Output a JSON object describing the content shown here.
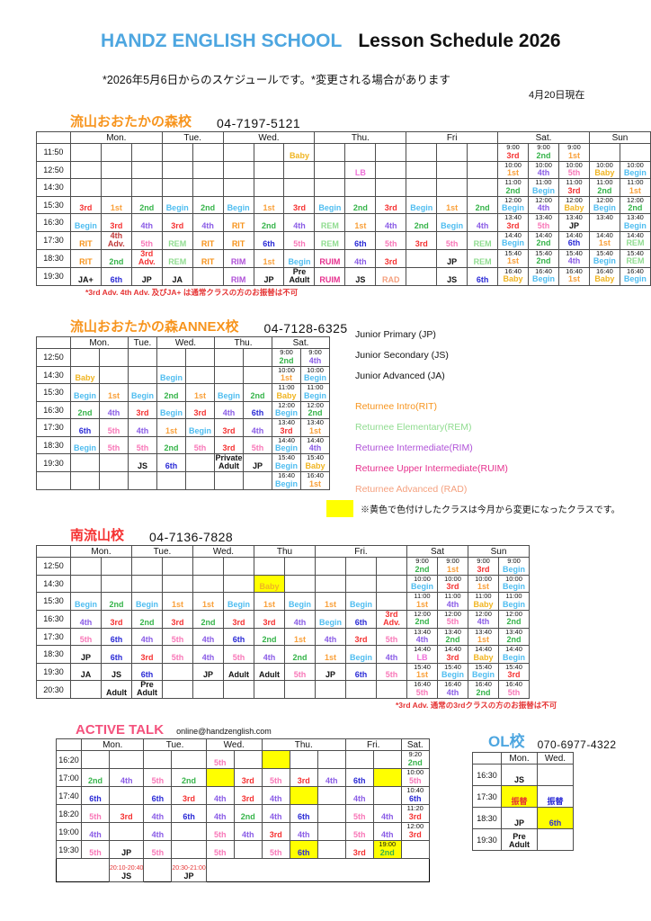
{
  "header": {
    "school_name": "HANDZ ENGLISH SCHOOL",
    "title": "Lesson Schedule 2026",
    "subtitle": "*2026年5月6日からのスケジュールです。*変更される場合があります",
    "date_note": "4月20日現在",
    "brand_color": "#4da6e0"
  },
  "yellow_note": {
    "text": "※黄色で色付けしたクラスは今月から変更になったクラスです。",
    "swatch_color": "#ffff00"
  },
  "palette": {
    "Baby": "#f0b522",
    "Begin": "#4fbdf0",
    "LB": "#ef6fd8",
    "1st": "#f9a03a",
    "2nd": "#36b44a",
    "3rd": "#f53232",
    "4th": "#8a5ce6",
    "5th": "#f878b8",
    "6th": "#2a2ad6",
    "RIT": "#f7941d",
    "REM": "#90dc90",
    "RIM": "#b052d8",
    "RUIM": "#e6308e",
    "RAD": "#f5a07e",
    "3rd Adv.": "#f53232",
    "4th Adv.": "#c03a3a",
    "JP": "#111111",
    "JS": "#111111",
    "JA": "#111111",
    "JA+": "#111111",
    "Adult": "#111111",
    "Pre Adult": "#111111",
    "Private Adult": "#111111"
  },
  "legend": {
    "items": [
      {
        "label": "Junior Primary (JP)",
        "color": "#111111"
      },
      {
        "label": "Junior Secondary (JS)",
        "color": "#111111"
      },
      {
        "label": "Junior Advanced (JA)",
        "color": "#111111"
      },
      {
        "label": "Returnee Intro(RIT)",
        "color": "#f7941d",
        "gap": true
      },
      {
        "label": "Returnee Elementary(REM)",
        "color": "#90dc90"
      },
      {
        "label": "Returnee Intermediate(RIM)",
        "color": "#b052d8"
      },
      {
        "label": "Returnee Upper Intermediate(RUIM)",
        "color": "#e6308e"
      },
      {
        "label": "Returnee Advanced (RAD)",
        "color": "#f5a07e"
      }
    ]
  },
  "tables": [
    {
      "id": "otakanomori",
      "title": "流山おおたかの森校",
      "title_color": "#f7941d",
      "phone": "04-7197-5121",
      "note": "*3rd Adv. 4th Adv. 及びJA+ は通常クラスの方のお振替は不可",
      "days": [
        {
          "label": "Mon.",
          "cols": 3
        },
        {
          "label": "Tue.",
          "cols": 2
        },
        {
          "label": "Wed.",
          "cols": 3
        },
        {
          "label": "Thu.",
          "cols": 3
        },
        {
          "label": "Fri",
          "cols": 3
        },
        {
          "label": "Sat.",
          "cols": 3
        },
        {
          "label": "Sun",
          "cols": 2
        }
      ],
      "rows": [
        {
          "time": "11:50",
          "cells": [
            "",
            "",
            "",
            "",
            "",
            "",
            "",
            "Baby",
            "",
            "",
            "",
            "",
            "",
            "",
            "T|9:00|3rd",
            "T|9:00|2nd",
            "T|9:00|1st",
            "",
            ""
          ]
        },
        {
          "time": "12:50",
          "cells": [
            "",
            "",
            "",
            "",
            "",
            "",
            "",
            "",
            "",
            "LB",
            "",
            "",
            "",
            "",
            "T|10:00|1st",
            "T|10:00|4th",
            "T|10:00|5th",
            "T|10:00|Baby",
            "T|10:00|Begin"
          ]
        },
        {
          "time": "14:30",
          "cells": [
            "",
            "",
            "",
            "",
            "",
            "",
            "",
            "",
            "",
            "",
            "",
            "",
            "",
            "",
            "T|11:00|2nd",
            "T|11:00|Begin",
            "T|11:00|3rd",
            "T|11:00|2nd",
            "T|11:00|1st"
          ]
        },
        {
          "time": "15:30",
          "cells": [
            "3rd",
            "1st",
            "2nd",
            "Begin",
            "2nd",
            "Begin",
            "1st",
            "3rd",
            "Begin",
            "2nd",
            "3rd",
            "Begin",
            "1st",
            "2nd",
            "T|12:00|Begin",
            "T|12:00|4th",
            "T|12:00|Baby",
            "T|12:00|Begin",
            "T|12:00|2nd"
          ]
        },
        {
          "time": "16:30",
          "cells": [
            "Begin",
            "3rd",
            "4th",
            "3rd",
            "4th",
            "RIT",
            "2nd",
            "4th",
            "REM",
            "1st",
            "4th",
            "2nd",
            "Begin",
            "4th",
            "T|13:40|3rd",
            "T|13:40|5th",
            "T|13:40|JP",
            "T|13:40|",
            "T|13:40|Begin"
          ]
        },
        {
          "time": "17:30",
          "cells": [
            "RIT",
            "4th Adv.",
            "5th",
            "REM",
            "RIT",
            "RIT",
            "6th",
            "5th",
            "REM",
            "6th",
            "5th",
            "3rd",
            "5th",
            "REM",
            "T|14:40|Begin",
            "T|14:40|2nd",
            "T|14:40|6th",
            "T|14:40|1st",
            "T|14:40|REM"
          ]
        },
        {
          "time": "18:30",
          "cells": [
            "RIT",
            "2nd",
            "3rd Adv.",
            "REM",
            "RIT",
            "RIM",
            "1st",
            "Begin",
            "RUIM",
            "4th",
            "3rd",
            "",
            "JP",
            "REM",
            "T|15:40|1st",
            "T|15:40|2nd",
            "T|15:40|4th",
            "T|15:40|Begin",
            "T|15:40|REM"
          ]
        },
        {
          "time": "19:30",
          "cells": [
            "JA+",
            "6th",
            "JP",
            "JA",
            "",
            "RIM",
            "JP",
            "Pre Adult",
            "RUIM",
            "JS",
            "RAD",
            "",
            "JS",
            "6th",
            "T|16:40|Baby",
            "T|16:40|Begin",
            "T|16:40|1st",
            "T|16:40|Baby",
            "T|16:40|Begin"
          ]
        }
      ]
    },
    {
      "id": "annex",
      "title": "流山おおたかの森ANNEX校",
      "title_color": "#f7941d",
      "phone": "04-7128-6325",
      "note": "",
      "days": [
        {
          "label": "Mon.",
          "cols": 2
        },
        {
          "label": "Tue.",
          "cols": 1
        },
        {
          "label": "Wed.",
          "cols": 2
        },
        {
          "label": "Thu.",
          "cols": 2
        },
        {
          "label": "Sat.",
          "cols": 2
        }
      ],
      "rows": [
        {
          "time": "12:50",
          "cells": [
            "",
            "",
            "",
            "",
            "",
            "",
            "",
            "T|9:00|2nd",
            "T|9:00|4th"
          ]
        },
        {
          "time": "14:30",
          "cells": [
            "Baby",
            "",
            "",
            "Begin",
            "",
            "",
            "",
            "T|10:00|1st",
            "T|10:00|Begin"
          ]
        },
        {
          "time": "15:30",
          "cells": [
            "Begin",
            "1st",
            "Begin",
            "2nd",
            "1st",
            "Begin",
            "2nd",
            "T|11:00|Baby",
            "T|11:00|Begin"
          ]
        },
        {
          "time": "16:30",
          "cells": [
            "2nd",
            "4th",
            "3rd",
            "Begin",
            "3rd",
            "4th",
            "6th",
            "T|12:00|Begin",
            "T|12:00|2nd"
          ]
        },
        {
          "time": "17:30",
          "cells": [
            "6th",
            "5th",
            "4th",
            "1st",
            "Begin",
            "3rd",
            "4th",
            "T|13:40|3rd",
            "T|13:40|1st"
          ]
        },
        {
          "time": "18:30",
          "cells": [
            "Begin",
            "5th",
            "5th",
            "2nd",
            "5th",
            "3rd",
            "5th",
            "T|14:40|Begin",
            "T|14:40|4th"
          ]
        },
        {
          "time": "19:30",
          "cells": [
            "",
            "",
            "JS",
            "6th",
            "",
            "Private Adult",
            "JP",
            "T|15:40|Begin",
            "T|15:40|Baby"
          ]
        },
        {
          "time": "",
          "cells": [
            "",
            "",
            "",
            "",
            "",
            "",
            "",
            "T|16:40|Begin",
            "T|16:40|1st"
          ]
        }
      ]
    },
    {
      "id": "minami",
      "title": "南流山校",
      "title_color": "#f53232",
      "phone": "04-7136-7828",
      "note": "*3rd Adv. 通常の3rdクラスの方のお振替は不可",
      "days": [
        {
          "label": "Mon.",
          "cols": 2
        },
        {
          "label": "Tue.",
          "cols": 2
        },
        {
          "label": "Wed.",
          "cols": 2
        },
        {
          "label": "Thu",
          "cols": 2
        },
        {
          "label": "Fri.",
          "cols": 3
        },
        {
          "label": "Sat",
          "cols": 2
        },
        {
          "label": "Sun",
          "cols": 2
        }
      ],
      "rows": [
        {
          "time": "12:50",
          "cells": [
            "",
            "",
            "",
            "",
            "",
            "",
            "",
            "",
            "",
            "",
            "",
            "T|9:00|2nd",
            "T|9:00|1st",
            "T|9:00|3rd",
            "T|9:00|Begin"
          ]
        },
        {
          "time": "14:30",
          "cells": [
            "",
            "",
            "",
            "",
            "",
            "",
            "Y|Baby",
            "",
            "",
            "",
            "",
            "T|10:00|Begin",
            "T|10:00|3rd",
            "T|10:00|1st",
            "T|10:00|Begin"
          ]
        },
        {
          "time": "15:30",
          "cells": [
            "Begin",
            "2nd",
            "Begin",
            "1st",
            "1st",
            "Begin",
            "1st",
            "Begin",
            "1st",
            "Begin",
            "",
            "T|11:00|1st",
            "T|11:00|4th",
            "T|11:00|Baby",
            "T|11:00|Begin"
          ]
        },
        {
          "time": "16:30",
          "cells": [
            "4th",
            "3rd",
            "2nd",
            "3rd",
            "2nd",
            "3rd",
            "3rd",
            "4th",
            "Begin",
            "6th",
            "3rd Adv.",
            "T|12:00|2nd",
            "T|12:00|5th",
            "T|12:00|4th",
            "T|12:00|2nd"
          ]
        },
        {
          "time": "17:30",
          "cells": [
            "5th",
            "6th",
            "4th",
            "5th",
            "4th",
            "6th",
            "2nd",
            "1st",
            "4th",
            "3rd",
            "5th",
            "T|13:40|4th",
            "T|13:40|2nd",
            "T|13:40|1st",
            "T|13:40|2nd"
          ]
        },
        {
          "time": "18:30",
          "cells": [
            "JP",
            "6th",
            "3rd",
            "5th",
            "4th",
            "5th",
            "4th",
            "2nd",
            "1st",
            "Begin",
            "4th",
            "T|14:40|LB",
            "T|14:40|3rd",
            "T|14:40|Baby",
            "T|14:40|Begin"
          ]
        },
        {
          "time": "19:30",
          "cells": [
            "JA",
            "JS",
            "6th",
            "",
            "JP",
            "Adult",
            "Adult",
            "5th",
            "JP",
            "6th",
            "5th",
            "T|15:40|1st",
            "T|15:40|Begin",
            "T|15:40|Begin",
            "T|15:40|3rd"
          ]
        },
        {
          "time": "20:30",
          "cells": [
            "",
            "Adult",
            "Pre Adult",
            "",
            "",
            "",
            "",
            "",
            "",
            "",
            "",
            "T|16:40|5th",
            "T|16:40|4th",
            "T|16:40|2nd",
            "T|16:40|5th"
          ]
        }
      ]
    },
    {
      "id": "activetalk",
      "title": "ACTIVE TALK",
      "title_color": "#f4517c",
      "phone": "",
      "contact": "online@handzenglish.com",
      "note": "",
      "days": [
        {
          "label": "Mon.",
          "cols": 2
        },
        {
          "label": "Tue.",
          "cols": 2
        },
        {
          "label": "Wed.",
          "cols": 2
        },
        {
          "label": "Thu.",
          "cols": 3
        },
        {
          "label": "Fri.",
          "cols": 2
        },
        {
          "label": "Sat.",
          "cols": 1
        }
      ],
      "rows": [
        {
          "time": "16:20",
          "cells": [
            "",
            "",
            "",
            "",
            "5th",
            "",
            "Y|",
            "",
            "",
            "",
            "",
            "T|9:20|2nd"
          ]
        },
        {
          "time": "17:00",
          "cells": [
            "2nd",
            "4th",
            "5th",
            "2nd",
            "Y|",
            "3rd",
            "5th",
            "3rd",
            "4th",
            "6th",
            "Y|",
            "T|10:00|5th"
          ]
        },
        {
          "time": "17:40",
          "cells": [
            "6th",
            "",
            "6th",
            "3rd",
            "4th",
            "3rd",
            "4th",
            "Y|",
            "",
            "4th",
            "",
            "T|10:40|6th"
          ]
        },
        {
          "time": "18:20",
          "cells": [
            "5th",
            "3rd",
            "4th",
            "6th",
            "4th",
            "2nd",
            "4th",
            "6th",
            "",
            "5th",
            "4th",
            "T|11:20|3rd"
          ]
        },
        {
          "time": "19:00",
          "cells": [
            "4th",
            "",
            "4th",
            "",
            "5th",
            "4th",
            "3rd",
            "4th",
            "",
            "5th",
            "4th",
            "T|12:00|3rd"
          ]
        },
        {
          "time": "19:30",
          "cells": [
            "5th",
            "JP",
            "5th",
            "",
            "5th",
            "",
            "5th",
            "Y|6th",
            "",
            "3rd",
            "Y|T|19:00|2nd",
            ""
          ]
        }
      ],
      "footer_boxes": [
        {
          "col": 1,
          "time": "20:10-20:40",
          "label": "JS"
        },
        {
          "col": 3,
          "time": "20:30-21:00",
          "label": "JP"
        }
      ]
    },
    {
      "id": "ol",
      "title": "OL校",
      "title_color": "#4da6e0",
      "phone": "070-6977-4322",
      "note": "",
      "days": [
        {
          "label": "Mon.",
          "cols": 1
        },
        {
          "label": "Wed.",
          "cols": 1
        }
      ],
      "rows": [
        {
          "time": "16:30",
          "cells": [
            "JS",
            ""
          ]
        },
        {
          "time": "17:30",
          "cells": [
            "Y|C|#e53333|振替",
            "C|#2a2ad6|振替"
          ]
        },
        {
          "time": "18:30",
          "cells": [
            "JP",
            "Y|6th"
          ]
        },
        {
          "time": "19:30",
          "cells": [
            "Pre Adult",
            ""
          ]
        }
      ]
    }
  ]
}
